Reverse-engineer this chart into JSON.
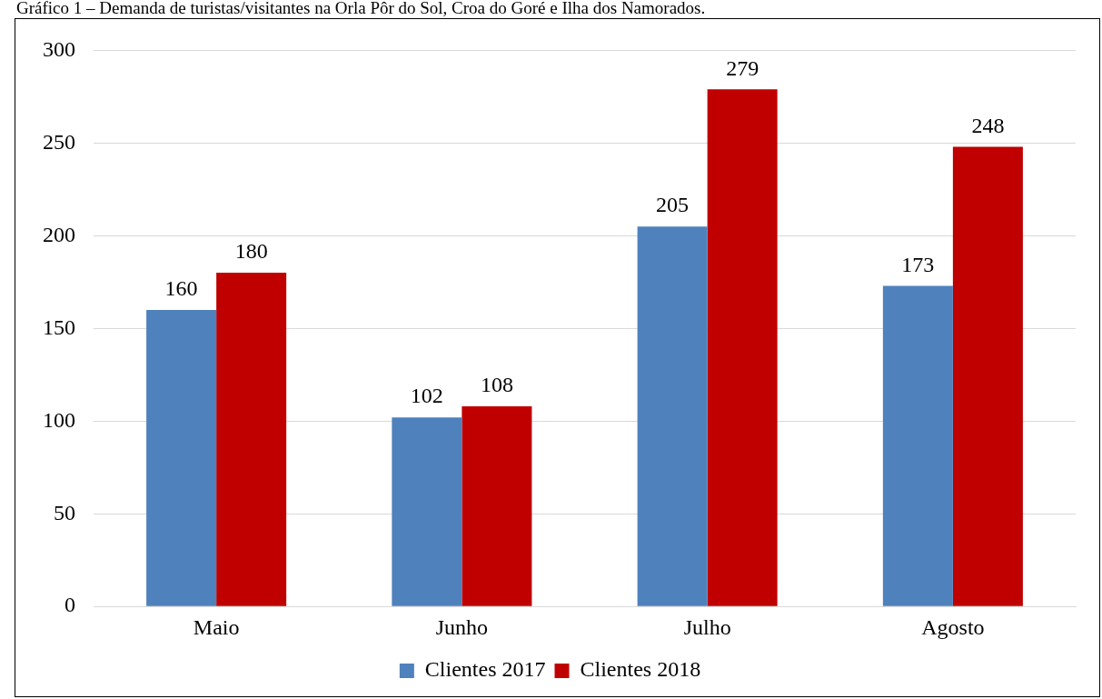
{
  "chart_data": {
    "type": "bar",
    "title": "Gráfico 1 – Demanda de turistas/visitantes na Orla Pôr do Sol, Croa do Goré e Ilha dos Namorados.",
    "categories": [
      "Maio",
      "Junho",
      "Julho",
      "Agosto"
    ],
    "series": [
      {
        "name": "Clientes 2017",
        "color": "#4f81bd",
        "values": [
          160,
          102,
          205,
          173
        ]
      },
      {
        "name": "Clientes 2018",
        "color": "#c00000",
        "values": [
          180,
          108,
          279,
          248
        ]
      }
    ],
    "ylim": [
      0,
      300
    ],
    "yticks": [
      0,
      50,
      100,
      150,
      200,
      250,
      300
    ],
    "grid": "y",
    "legend": "bottom",
    "data_labels": true
  }
}
